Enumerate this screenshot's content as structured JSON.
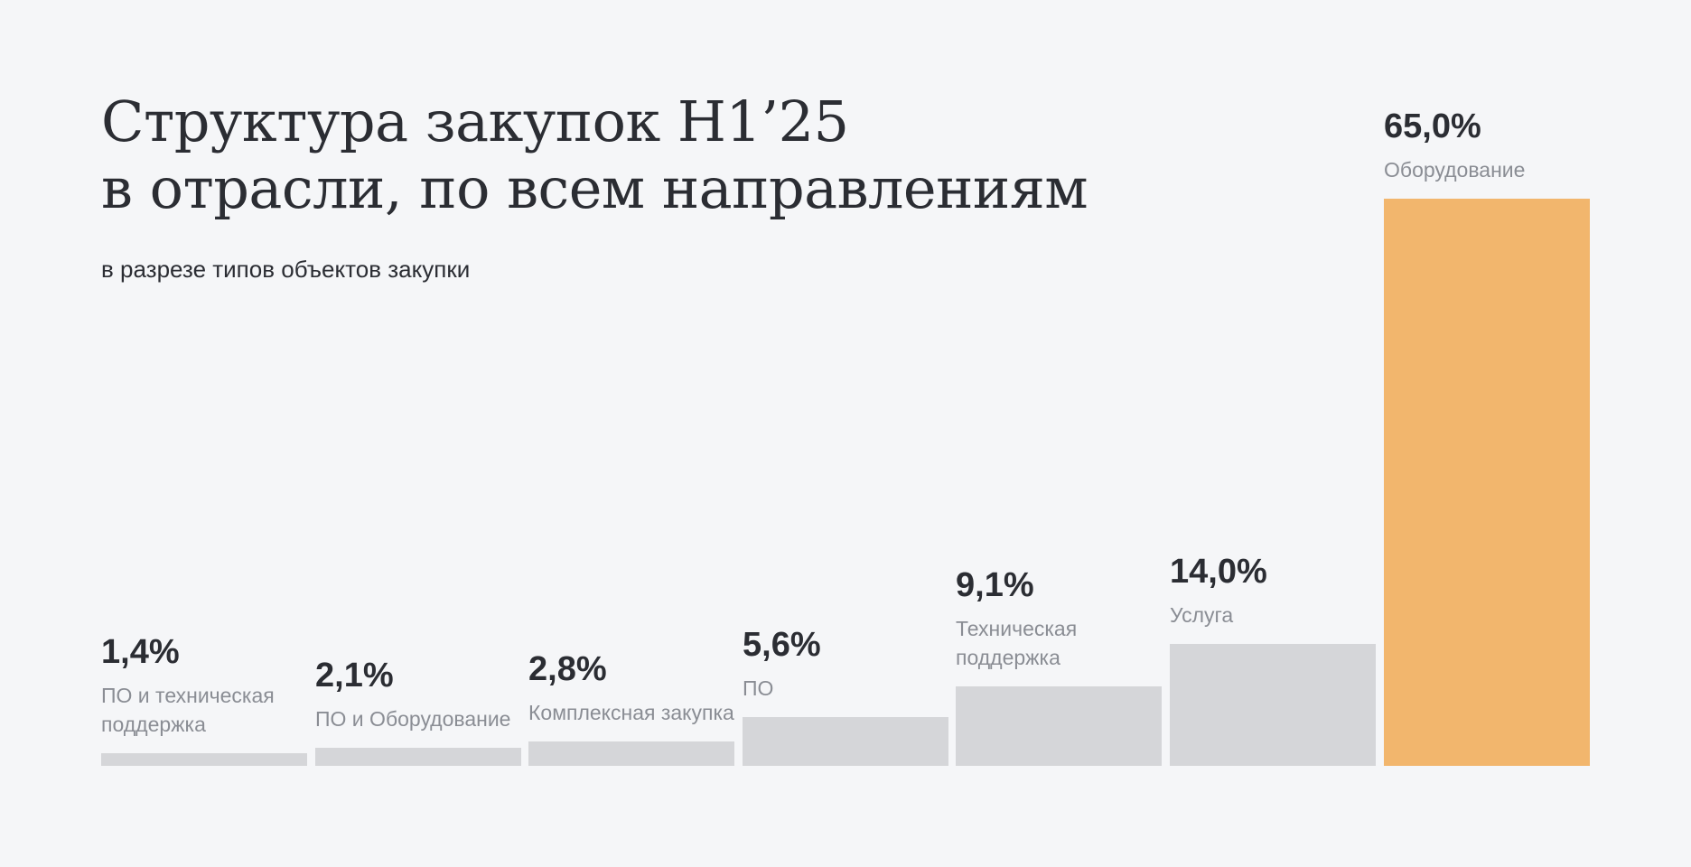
{
  "header": {
    "title_line1": "Структура закупок H1’25",
    "title_line2": "в отрасли, по всем направлениям",
    "subtitle": "в разрезе типов объектов закупки"
  },
  "colors": {
    "background": "#f5f6f8",
    "bar_default": "#d5d6d9",
    "bar_highlight": "#f2b66d",
    "text_primary": "#2b2d33",
    "text_secondary": "#8a8d94"
  },
  "chart_data": {
    "type": "bar",
    "title": "Структура закупок H1’25 в отрасли, по всем направлениям",
    "subtitle": "в разрезе типов объектов закупки",
    "categories": [
      "ПО и техническая поддержка",
      "ПО и Оборудование",
      "Комплексная закупка",
      "ПО",
      "Техническая поддержка",
      "Услуга",
      "Оборудование"
    ],
    "values": [
      1.4,
      2.1,
      2.8,
      5.6,
      9.1,
      14.0,
      65.0
    ],
    "value_labels": [
      "1,4%",
      "2,1%",
      "2,8%",
      "5,6%",
      "9,1%",
      "14,0%",
      "65,0%"
    ],
    "highlight_index": 6,
    "unit": "%",
    "ylim": [
      0,
      65
    ],
    "grid": false,
    "xlabel": "",
    "ylabel": ""
  }
}
